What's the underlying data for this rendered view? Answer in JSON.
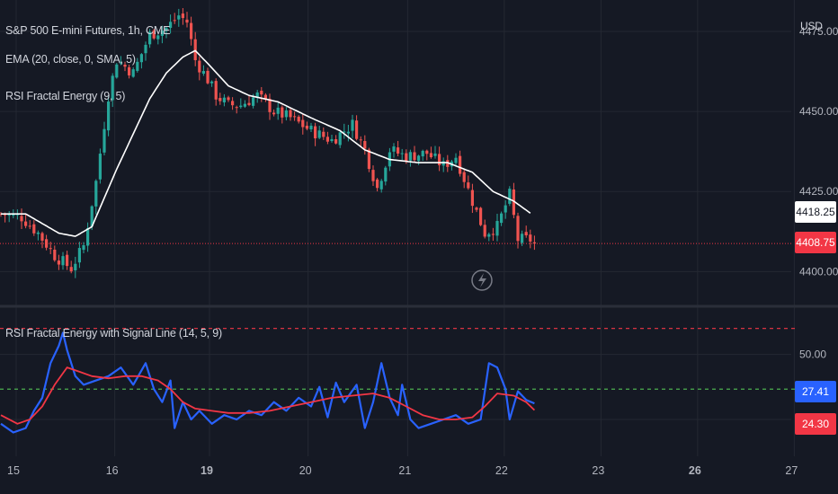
{
  "header": {
    "symbol_title": "S&P 500 E-mini Futures, 1h, CME",
    "indicator_ema": "EMA (20, close, 0, SMA, 5)",
    "indicator_rsi_fe": "RSI Fractal Energy (9, 5)",
    "currency": "USD"
  },
  "lower_pane": {
    "title": "RSI Fractal Energy with Signal Line (14, 5, 9)"
  },
  "price_tags": {
    "ema_value": "4418.25",
    "last_price": "4408.75",
    "rsi_value": "27.41",
    "signal_value": "24.30"
  },
  "colors": {
    "background": "#151924",
    "up": "#26a69a",
    "down": "#ef5350",
    "ema": "#ffffff",
    "rsi_line": "#2962ff",
    "signal_line": "#f23645",
    "last_price_line": "#f23645",
    "upper_level": "#f23645",
    "lower_level": "#4caf50"
  },
  "chart_data": [
    {
      "type": "candlestick",
      "title": "S&P 500 E-mini Futures, 1h, CME",
      "ylabel": "USD",
      "y_ticks": [
        "4475.00",
        "4450.00",
        "4425.00",
        "4400.00"
      ],
      "x_ticks": [
        "15",
        "16",
        "19",
        "20",
        "21",
        "22",
        "23",
        "26",
        "27"
      ],
      "ylim": [
        4390,
        4482
      ],
      "bars_per_day": 23,
      "last_price": 4408.75,
      "ema_last": 4418.25,
      "path": [
        {
          "b": 0,
          "v": 4418
        },
        {
          "b": 5,
          "v": 4417
        },
        {
          "b": 9,
          "v": 4412
        },
        {
          "b": 13,
          "v": 4405
        },
        {
          "b": 17,
          "v": 4401
        },
        {
          "b": 20,
          "v": 4408
        },
        {
          "b": 23,
          "v": 4428
        },
        {
          "b": 26,
          "v": 4455
        },
        {
          "b": 28,
          "v": 4466
        },
        {
          "b": 32,
          "v": 4462
        },
        {
          "b": 36,
          "v": 4474
        },
        {
          "b": 40,
          "v": 4476
        },
        {
          "b": 43,
          "v": 4480
        },
        {
          "b": 45,
          "v": 4478
        },
        {
          "b": 47,
          "v": 4466
        },
        {
          "b": 50,
          "v": 4460
        },
        {
          "b": 52,
          "v": 4455
        },
        {
          "b": 55,
          "v": 4452
        },
        {
          "b": 58,
          "v": 4452
        },
        {
          "b": 62,
          "v": 4455
        },
        {
          "b": 66,
          "v": 4450
        },
        {
          "b": 70,
          "v": 4448
        },
        {
          "b": 75,
          "v": 4444
        },
        {
          "b": 80,
          "v": 4441
        },
        {
          "b": 85,
          "v": 4446
        },
        {
          "b": 88,
          "v": 4438
        },
        {
          "b": 91,
          "v": 4426
        },
        {
          "b": 94,
          "v": 4438
        },
        {
          "b": 98,
          "v": 4436
        },
        {
          "b": 103,
          "v": 4437
        },
        {
          "b": 107,
          "v": 4433
        },
        {
          "b": 110,
          "v": 4436
        },
        {
          "b": 114,
          "v": 4422
        },
        {
          "b": 117,
          "v": 4412
        },
        {
          "b": 120,
          "v": 4414
        },
        {
          "b": 123,
          "v": 4424
        },
        {
          "b": 125,
          "v": 4410
        },
        {
          "b": 128,
          "v": 4410
        },
        {
          "b": 129,
          "v": 4408.75
        }
      ],
      "ema": [
        {
          "b": 0,
          "v": 4418
        },
        {
          "b": 6,
          "v": 4418
        },
        {
          "b": 10,
          "v": 4415
        },
        {
          "b": 14,
          "v": 4412
        },
        {
          "b": 18,
          "v": 4411
        },
        {
          "b": 22,
          "v": 4414
        },
        {
          "b": 25,
          "v": 4423
        },
        {
          "b": 28,
          "v": 4432
        },
        {
          "b": 32,
          "v": 4443
        },
        {
          "b": 36,
          "v": 4454
        },
        {
          "b": 40,
          "v": 4462
        },
        {
          "b": 44,
          "v": 4467
        },
        {
          "b": 47,
          "v": 4469
        },
        {
          "b": 50,
          "v": 4465
        },
        {
          "b": 55,
          "v": 4458
        },
        {
          "b": 60,
          "v": 4455
        },
        {
          "b": 67,
          "v": 4453
        },
        {
          "b": 75,
          "v": 4448
        },
        {
          "b": 82,
          "v": 4444
        },
        {
          "b": 88,
          "v": 4438
        },
        {
          "b": 94,
          "v": 4435
        },
        {
          "b": 101,
          "v": 4434
        },
        {
          "b": 108,
          "v": 4434
        },
        {
          "b": 114,
          "v": 4431
        },
        {
          "b": 119,
          "v": 4425
        },
        {
          "b": 124,
          "v": 4422
        },
        {
          "b": 128,
          "v": 4418.25
        }
      ]
    },
    {
      "type": "line",
      "title": "RSI Fractal Energy with Signal Line (14, 5, 9)",
      "y_ticks": [
        "50.00"
      ],
      "ylim": [
        3,
        71
      ],
      "upper_level": 62,
      "lower_level": 34,
      "series": [
        {
          "color": "#2962ff",
          "last": 27.41,
          "points": [
            {
              "b": 0,
              "v": 18
            },
            {
              "b": 3,
              "v": 14
            },
            {
              "b": 6,
              "v": 16
            },
            {
              "b": 8,
              "v": 24
            },
            {
              "b": 10,
              "v": 30
            },
            {
              "b": 12,
              "v": 46
            },
            {
              "b": 14,
              "v": 54
            },
            {
              "b": 15,
              "v": 60
            },
            {
              "b": 16,
              "v": 52
            },
            {
              "b": 18,
              "v": 40
            },
            {
              "b": 20,
              "v": 36
            },
            {
              "b": 23,
              "v": 38
            },
            {
              "b": 26,
              "v": 40
            },
            {
              "b": 29,
              "v": 44
            },
            {
              "b": 32,
              "v": 36
            },
            {
              "b": 35,
              "v": 46
            },
            {
              "b": 37,
              "v": 34
            },
            {
              "b": 39,
              "v": 28
            },
            {
              "b": 41,
              "v": 38
            },
            {
              "b": 42,
              "v": 16
            },
            {
              "b": 44,
              "v": 28
            },
            {
              "b": 46,
              "v": 20
            },
            {
              "b": 48,
              "v": 24
            },
            {
              "b": 51,
              "v": 18
            },
            {
              "b": 54,
              "v": 22
            },
            {
              "b": 57,
              "v": 20
            },
            {
              "b": 60,
              "v": 24
            },
            {
              "b": 63,
              "v": 22
            },
            {
              "b": 66,
              "v": 28
            },
            {
              "b": 69,
              "v": 24
            },
            {
              "b": 72,
              "v": 30
            },
            {
              "b": 75,
              "v": 26
            },
            {
              "b": 77,
              "v": 35
            },
            {
              "b": 79,
              "v": 21
            },
            {
              "b": 81,
              "v": 37
            },
            {
              "b": 83,
              "v": 28
            },
            {
              "b": 86,
              "v": 36
            },
            {
              "b": 88,
              "v": 16
            },
            {
              "b": 90,
              "v": 28
            },
            {
              "b": 92,
              "v": 46
            },
            {
              "b": 94,
              "v": 30
            },
            {
              "b": 96,
              "v": 22
            },
            {
              "b": 97,
              "v": 36
            },
            {
              "b": 99,
              "v": 20
            },
            {
              "b": 101,
              "v": 16
            },
            {
              "b": 104,
              "v": 18
            },
            {
              "b": 107,
              "v": 20
            },
            {
              "b": 110,
              "v": 22
            },
            {
              "b": 113,
              "v": 18
            },
            {
              "b": 116,
              "v": 20
            },
            {
              "b": 118,
              "v": 46
            },
            {
              "b": 120,
              "v": 44
            },
            {
              "b": 122,
              "v": 34
            },
            {
              "b": 123,
              "v": 20
            },
            {
              "b": 125,
              "v": 33
            },
            {
              "b": 127,
              "v": 29
            },
            {
              "b": 129,
              "v": 27.41
            }
          ]
        },
        {
          "color": "#f23645",
          "last": 24.3,
          "points": [
            {
              "b": 0,
              "v": 22
            },
            {
              "b": 4,
              "v": 18
            },
            {
              "b": 7,
              "v": 20
            },
            {
              "b": 10,
              "v": 26
            },
            {
              "b": 13,
              "v": 36
            },
            {
              "b": 16,
              "v": 44
            },
            {
              "b": 19,
              "v": 42
            },
            {
              "b": 22,
              "v": 40
            },
            {
              "b": 26,
              "v": 39
            },
            {
              "b": 30,
              "v": 40
            },
            {
              "b": 34,
              "v": 40
            },
            {
              "b": 38,
              "v": 38
            },
            {
              "b": 41,
              "v": 34
            },
            {
              "b": 44,
              "v": 28
            },
            {
              "b": 47,
              "v": 25
            },
            {
              "b": 51,
              "v": 24
            },
            {
              "b": 55,
              "v": 23
            },
            {
              "b": 60,
              "v": 23
            },
            {
              "b": 65,
              "v": 24
            },
            {
              "b": 70,
              "v": 26
            },
            {
              "b": 75,
              "v": 28
            },
            {
              "b": 80,
              "v": 30
            },
            {
              "b": 85,
              "v": 31
            },
            {
              "b": 90,
              "v": 32
            },
            {
              "b": 94,
              "v": 30
            },
            {
              "b": 98,
              "v": 26
            },
            {
              "b": 102,
              "v": 22
            },
            {
              "b": 106,
              "v": 20
            },
            {
              "b": 110,
              "v": 20
            },
            {
              "b": 114,
              "v": 21
            },
            {
              "b": 117,
              "v": 26
            },
            {
              "b": 120,
              "v": 32
            },
            {
              "b": 124,
              "v": 31
            },
            {
              "b": 127,
              "v": 28
            },
            {
              "b": 129,
              "v": 24.3
            }
          ]
        }
      ]
    }
  ]
}
